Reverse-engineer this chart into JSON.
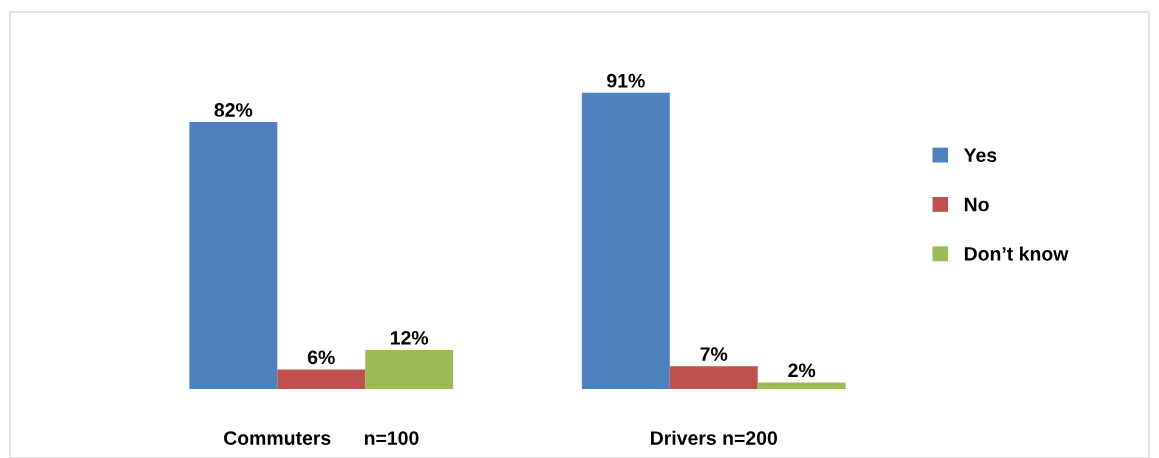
{
  "chart_data": {
    "type": "bar",
    "categories": [
      "Commuters      n=100",
      "Drivers n=200"
    ],
    "series": [
      {
        "name": "Yes",
        "color": "#4f81bd",
        "values": [
          82,
          91
        ],
        "value_labels": [
          "82%",
          "91%"
        ]
      },
      {
        "name": "No",
        "color": "#c0504d",
        "values": [
          6,
          7
        ],
        "value_labels": [
          "6%",
          "7%"
        ]
      },
      {
        "name": "Don’t know",
        "color": "#9bbb59",
        "values": [
          12,
          2
        ],
        "value_labels": [
          "12%",
          "2%"
        ]
      }
    ],
    "legend": "right",
    "grid": false
  }
}
